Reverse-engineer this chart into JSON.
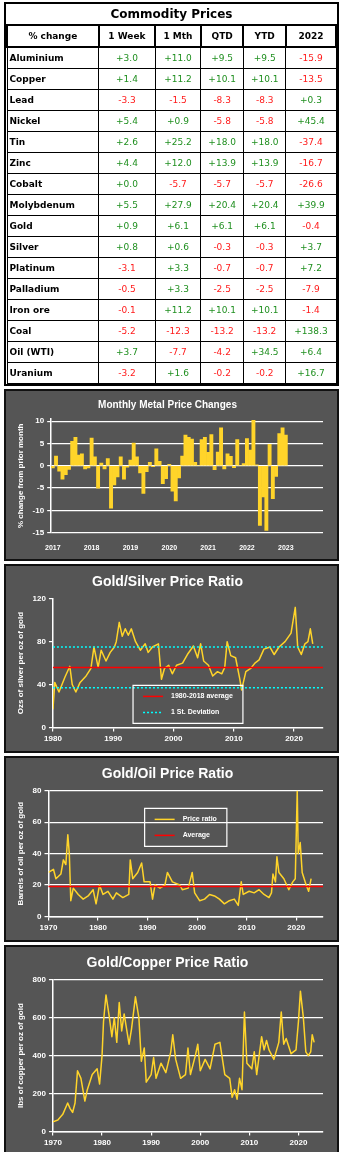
{
  "chart_data": [
    {
      "type": "heatmap",
      "title": "Commodity Prices",
      "ylabel": "% change",
      "categories": [
        "1 Week",
        "1 Mth",
        "QTD",
        "YTD",
        "2022"
      ],
      "y_categories": [
        "Aluminium",
        "Copper",
        "Lead",
        "Nickel",
        "Tin",
        "Zinc",
        "Cobalt",
        "Molybdenum",
        "Gold",
        "Silver",
        "Platinum",
        "Palladium",
        "Iron ore",
        "Coal",
        "Oil (WTI)",
        "Uranium"
      ],
      "cells": [
        [
          3.0,
          11.0,
          9.5,
          9.5,
          -15.9
        ],
        [
          1.4,
          11.2,
          10.1,
          10.1,
          -13.5
        ],
        [
          -3.3,
          -1.5,
          -8.3,
          -8.3,
          0.3
        ],
        [
          5.4,
          0.9,
          -5.8,
          -5.8,
          45.4
        ],
        [
          2.6,
          25.2,
          18.0,
          18.0,
          -37.4
        ],
        [
          4.4,
          12.0,
          13.9,
          13.9,
          -16.7
        ],
        [
          0.0,
          -5.7,
          -5.7,
          -5.7,
          -26.6
        ],
        [
          5.5,
          27.9,
          20.4,
          20.4,
          39.9
        ],
        [
          0.9,
          6.1,
          6.1,
          6.1,
          -0.4
        ],
        [
          0.8,
          0.6,
          -0.3,
          -0.3,
          3.7
        ],
        [
          -3.1,
          3.3,
          -0.7,
          -0.7,
          7.2
        ],
        [
          -0.5,
          3.3,
          -2.5,
          -2.5,
          -7.9
        ],
        [
          -0.1,
          11.2,
          10.1,
          10.1,
          -1.4
        ],
        [
          -5.2,
          -12.3,
          -13.2,
          -13.2,
          138.3
        ],
        [
          3.7,
          -7.7,
          -4.2,
          34.5,
          6.4
        ],
        [
          -3.2,
          1.6,
          -0.2,
          -0.2,
          16.7
        ]
      ],
      "cell_labels": [
        [
          "+3.0",
          "+11.0",
          "+9.5",
          "+9.5",
          "-15.9"
        ],
        [
          "+1.4",
          "+11.2",
          "+10.1",
          "+10.1",
          "-13.5"
        ],
        [
          "-3.3",
          "-1.5",
          "-8.3",
          "-8.3",
          "+0.3"
        ],
        [
          "+5.4",
          "+0.9",
          "-5.8",
          "-5.8",
          "+45.4"
        ],
        [
          "+2.6",
          "+25.2",
          "+18.0",
          "+18.0",
          "-37.4"
        ],
        [
          "+4.4",
          "+12.0",
          "+13.9",
          "+13.9",
          "-16.7"
        ],
        [
          "+0.0",
          "-5.7",
          "-5.7",
          "-5.7",
          "-26.6"
        ],
        [
          "+5.5",
          "+27.9",
          "+20.4",
          "+20.4",
          "+39.9"
        ],
        [
          "+0.9",
          "+6.1",
          "+6.1",
          "+6.1",
          "-0.4"
        ],
        [
          "+0.8",
          "+0.6",
          "-0.3",
          "-0.3",
          "+3.7"
        ],
        [
          "-3.1",
          "+3.3",
          "-0.7",
          "-0.7",
          "+7.2"
        ],
        [
          "-0.5",
          "+3.3",
          "-2.5",
          "-2.5",
          "-7.9"
        ],
        [
          "-0.1",
          "+11.2",
          "+10.1",
          "+10.1",
          "-1.4"
        ],
        [
          "-5.2",
          "-12.3",
          "-13.2",
          "-13.2",
          "+138.3"
        ],
        [
          "+3.7",
          "-7.7",
          "-4.2",
          "+34.5",
          "+6.4"
        ],
        [
          "-3.2",
          "+1.6",
          "-0.2",
          "-0.2",
          "+16.7"
        ]
      ]
    },
    {
      "type": "bar",
      "title": "Monthly Metal Price Changes",
      "ylabel": "% change from prior month",
      "color": "#ffd42a",
      "grid": "y",
      "categories": [
        "2017",
        null,
        null,
        null,
        null,
        null,
        null,
        null,
        null,
        null,
        null,
        null,
        "2018",
        null,
        null,
        null,
        null,
        null,
        null,
        null,
        null,
        null,
        null,
        null,
        "2019",
        null,
        null,
        null,
        null,
        null,
        null,
        null,
        null,
        null,
        null,
        null,
        "2020",
        null,
        null,
        null,
        null,
        null,
        null,
        null,
        null,
        null,
        null,
        null,
        "2021",
        null,
        null,
        null,
        null,
        null,
        null,
        null,
        null,
        null,
        null,
        null,
        "2022",
        null,
        null,
        null,
        null,
        null,
        null,
        null,
        null,
        null,
        null,
        null,
        "2023",
        null,
        null,
        null,
        null,
        null,
        null,
        null,
        null,
        null,
        null,
        null
      ],
      "values": [
        -0.5,
        2.2,
        -1.2,
        -3.0,
        -2.0,
        -0.8,
        5.5,
        6.4,
        2.4,
        2.7,
        -0.7,
        -0.5,
        6.2,
        2.0,
        -5.0,
        0.6,
        -0.7,
        1.6,
        -9.5,
        -4.3,
        -2.5,
        2.0,
        -3.0,
        -0.3,
        1.3,
        5.1,
        2.0,
        -1.6,
        -6.2,
        -1.3,
        0.8,
        -0.2,
        3.8,
        1.0,
        -4.0,
        -2.9,
        0.3,
        -5.7,
        -7.9,
        -2.7,
        2.2,
        6.9,
        6.4,
        6.0,
        0.8,
        0.0,
        5.9,
        6.4,
        3.0,
        7.0,
        -0.9,
        3.1,
        8.5,
        -0.7,
        2.7,
        2.1,
        -0.4,
        5.9,
        0.0,
        0.5,
        6.1,
        3.5,
        10.2,
        0.2,
        -13.4,
        -7.0,
        -14.5,
        4.8,
        -7.4,
        -2.4,
        7.2,
        8.5,
        6.9,
        null,
        null,
        null,
        null,
        null,
        null,
        null,
        null,
        null,
        null,
        null
      ],
      "ylim": [
        -15,
        10.5
      ],
      "yticks": [
        -15,
        -10,
        -5,
        0,
        5,
        10
      ]
    },
    {
      "type": "line",
      "title": "Gold/Silver Price Ratio",
      "ylabel": "Ozs of silver per oz of gold",
      "grid": false,
      "legend": "bottom",
      "series": [
        {
          "color": "#ffd42a",
          "x": [
            1980.0,
            1980.3,
            1981,
            1981.5,
            1982,
            1982.8,
            1983.2,
            1983.8,
            1984.5,
            1985.5,
            1986.3,
            1986.8,
            1987.5,
            1988,
            1988.8,
            1989.5,
            1990.2,
            1990.5,
            1991,
            1991.5,
            1992,
            1992.5,
            1993,
            1993.7,
            1994.5,
            1995.3,
            1995.8,
            1996.5,
            1997.5,
            1998,
            1998.5,
            1999.2,
            1999.8,
            2000.5,
            2001.5,
            2002.3,
            2003.3,
            2004,
            2004.5,
            2005,
            2005.8,
            2006.5,
            2007.3,
            2008,
            2008.5,
            2008.9,
            2009.5,
            2010.3,
            2011,
            2011.3,
            2012,
            2012.8,
            2013.5,
            2014.2,
            2015,
            2016,
            2016.7,
            2017.5,
            2018.5,
            2019.5,
            2020.2,
            2020.6,
            2021.2,
            2021.8,
            2022.3,
            2022.7,
            2023.1
          ],
          "values": [
            17,
            42,
            33,
            40,
            47,
            57,
            40,
            33,
            42,
            48,
            55,
            75,
            56,
            72,
            62,
            70,
            75,
            80,
            98,
            85,
            92,
            86,
            92,
            80,
            72,
            78,
            70,
            75,
            78,
            45,
            55,
            58,
            50,
            58,
            60,
            68,
            76,
            65,
            78,
            62,
            58,
            48,
            52,
            50,
            56,
            80,
            67,
            65,
            45,
            35,
            52,
            55,
            60,
            63,
            73,
            75,
            68,
            75,
            80,
            88,
            112,
            75,
            68,
            78,
            80,
            92,
            78
          ]
        }
      ],
      "ref_lines": [
        {
          "axis": "y",
          "value": 56,
          "label": "1980-2018 average",
          "color": "#ff0000"
        },
        {
          "axis": "y",
          "value": 75,
          "label": "1 St. Deviation",
          "color": "#00ffff",
          "line_style": "dotted"
        },
        {
          "axis": "y",
          "value": 37,
          "color": "#00ffff",
          "line_style": "dotted"
        }
      ],
      "xlim": [
        1980,
        2024.8
      ],
      "xticks": [
        1980,
        1990,
        2000,
        2010,
        2020
      ],
      "ylim": [
        0,
        120
      ],
      "yticks": [
        0,
        40,
        80,
        120
      ]
    },
    {
      "type": "line",
      "title": "Gold/Oil Price Ratio",
      "ylabel": "Barrels of oil per oz of gold",
      "grid": "y",
      "legend": "top",
      "series": [
        {
          "name": "Price ratio",
          "color": "#ffd42a",
          "x": [
            1970,
            1971,
            1971.5,
            1972.5,
            1973,
            1973.5,
            1973.9,
            1974.2,
            1974.5,
            1975,
            1976,
            1977,
            1978,
            1979,
            1979.6,
            1980.3,
            1981,
            1982,
            1983,
            1983.7,
            1985,
            1986.2,
            1986.5,
            1987,
            1988,
            1988.8,
            1989.3,
            1990.5,
            1991,
            1991.5,
            1992.5,
            1993.5,
            1994,
            1995,
            1996.5,
            1997,
            1998.2,
            1999,
            1999.5,
            2000.5,
            2001.5,
            2002.5,
            2003.5,
            2004.5,
            2005.5,
            2006.5,
            2007.5,
            2008.3,
            2008.9,
            2009.3,
            2010.5,
            2011.5,
            2012.5,
            2013.5,
            2014.5,
            2015,
            2015.3,
            2015.8,
            2016.1,
            2016.5,
            2017.5,
            2018.5,
            2019.3,
            2019.8,
            2020.2,
            2020.4,
            2020.8,
            2021.2,
            2022,
            2022.5,
            2023
          ],
          "values": [
            28,
            30,
            24,
            27,
            36,
            33,
            52,
            40,
            10,
            18,
            14,
            11,
            13,
            17,
            8,
            20,
            14,
            16,
            11,
            15,
            12,
            14,
            36,
            24,
            28,
            34,
            22,
            22,
            11,
            20,
            18,
            20,
            28,
            22,
            20,
            17,
            18,
            28,
            15,
            10,
            11,
            14,
            13,
            11,
            8,
            10,
            11,
            7,
            22,
            14,
            16,
            15,
            17,
            14,
            12,
            15,
            27,
            22,
            38,
            28,
            24,
            17,
            22,
            24,
            80,
            40,
            47,
            28,
            20,
            16,
            24
          ]
        }
      ],
      "ref_lines": [
        {
          "axis": "y",
          "value": 19,
          "label": "Average",
          "color": "#ff0000"
        }
      ],
      "xlim": [
        1970,
        2025.4
      ],
      "xticks": [
        1970,
        1980,
        1990,
        2000,
        2010,
        2020
      ],
      "ylim": [
        0,
        80
      ],
      "yticks": [
        0,
        20,
        40,
        60,
        80
      ]
    },
    {
      "type": "line",
      "title": "Gold/Copper Price Ratio",
      "ylabel": "lbs of copper per oz of gold",
      "grid": "y",
      "series": [
        {
          "color": "#ffd42a",
          "x": [
            1970,
            1971,
            1972,
            1973,
            1973.5,
            1974,
            1974.5,
            1975,
            1975.7,
            1976.5,
            1977,
            1978,
            1979,
            1979.5,
            1980,
            1980.3,
            1980.8,
            1981.5,
            1982,
            1982.5,
            1983,
            1983.5,
            1984,
            1984.5,
            1985.5,
            1986,
            1986.8,
            1987.5,
            1988,
            1988.6,
            1989,
            1990,
            1990.5,
            1991,
            1992,
            1993,
            1994,
            1994.4,
            1995,
            1996,
            1997,
            1997.5,
            1998,
            1999,
            1999.5,
            2000,
            2001,
            2002,
            2003,
            2004,
            2005,
            2006,
            2006.5,
            2007,
            2007.5,
            2008,
            2008.5,
            2009,
            2009.5,
            2010.5,
            2011,
            2011.5,
            2012.5,
            2013,
            2013.5,
            2014,
            2015,
            2016,
            2016.5,
            2017,
            2017.5,
            2018.5,
            2019.5,
            2020,
            2020.4,
            2021,
            2021.5,
            2022,
            2022.5,
            2022.8,
            2023.2
          ],
          "values": [
            50,
            60,
            90,
            150,
            120,
            100,
            150,
            320,
            280,
            160,
            220,
            300,
            330,
            250,
            400,
            580,
            720,
            600,
            500,
            600,
            470,
            680,
            530,
            620,
            460,
            540,
            710,
            600,
            370,
            440,
            260,
            300,
            390,
            280,
            360,
            310,
            420,
            510,
            380,
            280,
            300,
            440,
            300,
            400,
            460,
            320,
            380,
            330,
            460,
            470,
            300,
            280,
            180,
            220,
            170,
            280,
            220,
            630,
            360,
            330,
            420,
            300,
            500,
            430,
            480,
            430,
            380,
            470,
            630,
            460,
            490,
            410,
            430,
            580,
            740,
            600,
            420,
            400,
            420,
            510,
            470
          ]
        }
      ],
      "xlim": [
        1970,
        2025
      ],
      "xticks": [
        1970,
        1980,
        1990,
        2000,
        2010,
        2020
      ],
      "ylim": [
        0,
        800
      ],
      "yticks": [
        0,
        200,
        400,
        600,
        800
      ]
    }
  ]
}
